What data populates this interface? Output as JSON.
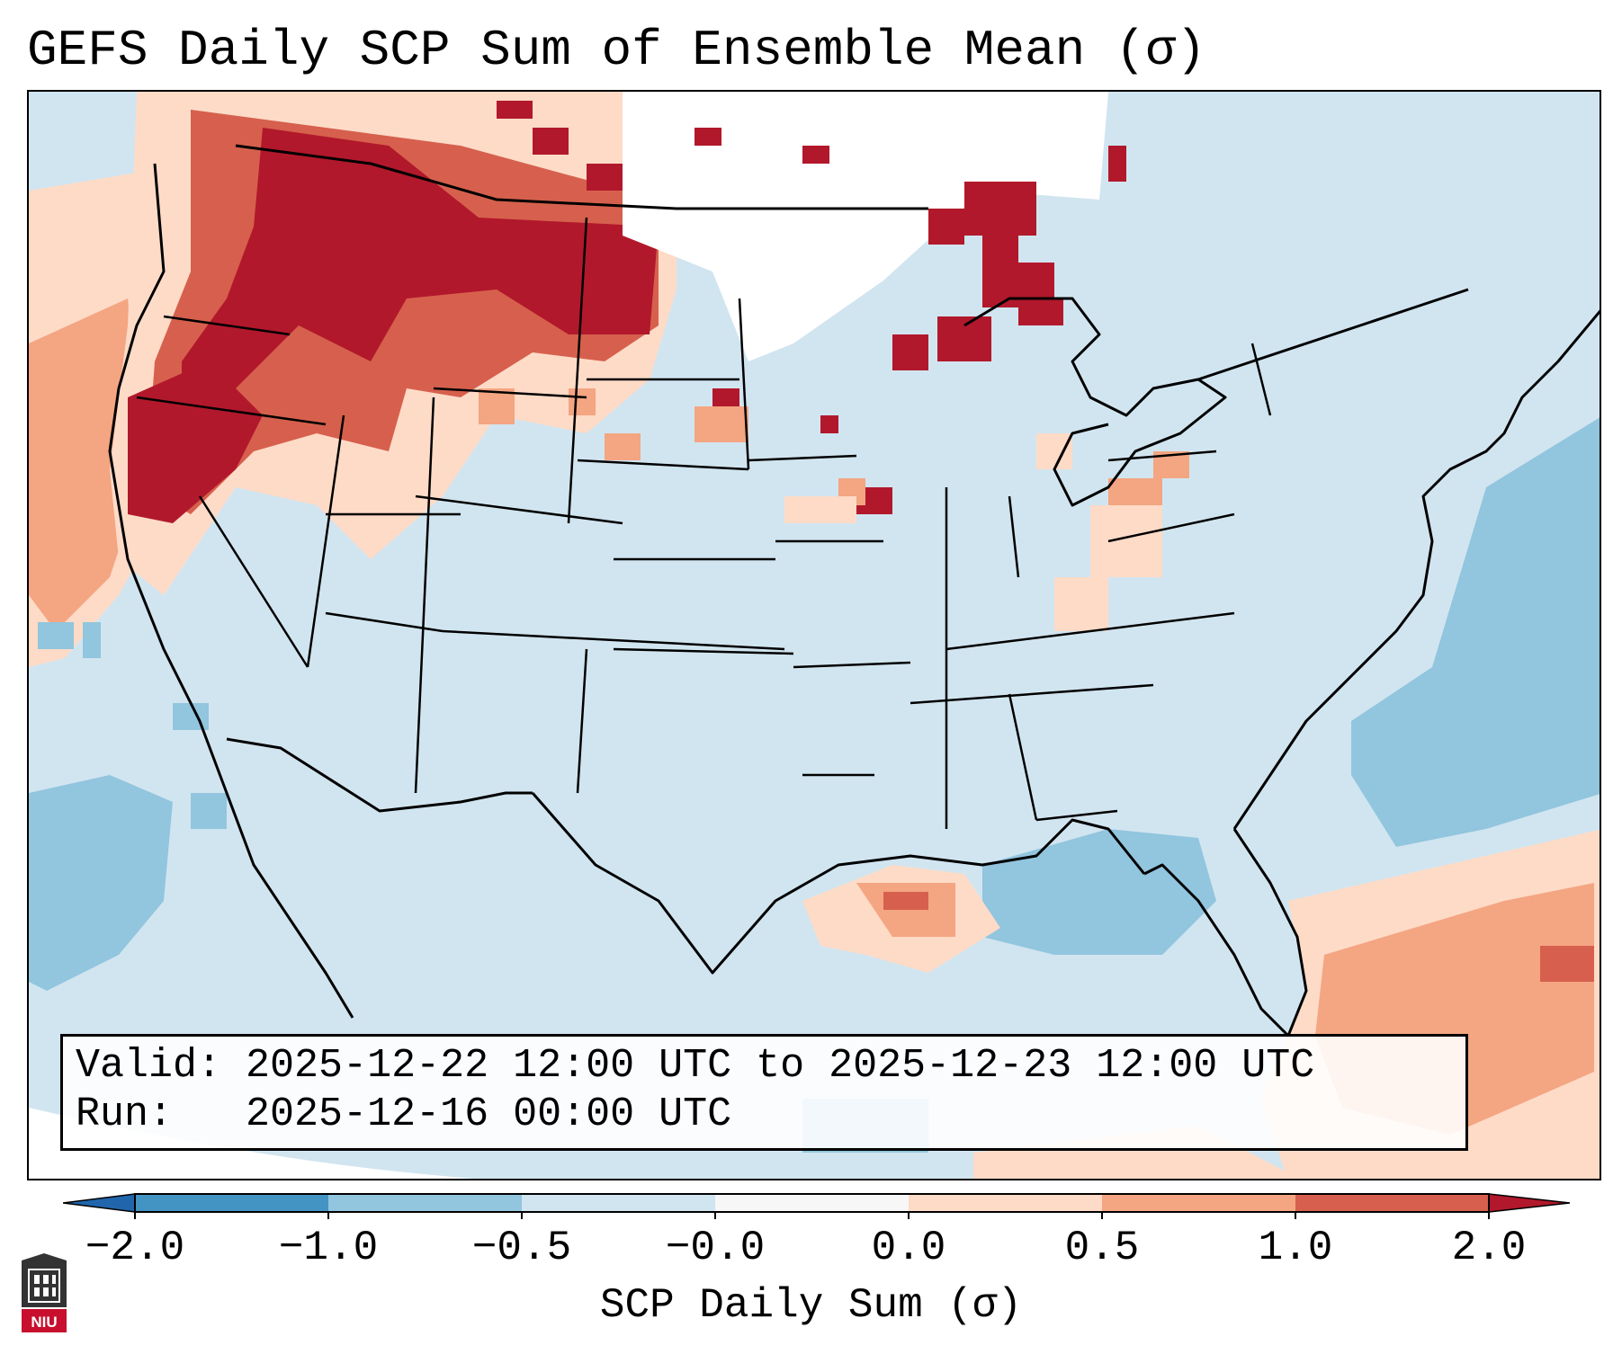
{
  "title": "GEFS Daily SCP Sum of Ensemble Mean (σ)",
  "info": {
    "valid_label": "Valid:",
    "valid_value": "2025-12-22 12:00 UTC to 2025-12-23 12:00 UTC",
    "run_label": "Run:",
    "run_value": "2025-12-16 00:00 UTC"
  },
  "colorbar": {
    "label": "SCP Daily Sum (σ)",
    "ticks": [
      "−2.0",
      "−1.0",
      "−0.5",
      "−0.0",
      "0.0",
      "0.5",
      "1.0",
      "2.0"
    ],
    "segments": [
      {
        "range": "< -2.0",
        "color": "#2166ac"
      },
      {
        "range": "-2.0 to -1.0",
        "color": "#4393c3"
      },
      {
        "range": "-1.0 to -0.5",
        "color": "#92c5de"
      },
      {
        "range": "-0.5 to -0.0",
        "color": "#d1e5f0"
      },
      {
        "range": "-0.0 to 0.0",
        "color": "#f7f7f7"
      },
      {
        "range": "0.0 to 0.5",
        "color": "#fddbc7"
      },
      {
        "range": "0.5 to 1.0",
        "color": "#f4a582"
      },
      {
        "range": "1.0 to 2.0",
        "color": "#d6604d"
      },
      {
        "range": "> 2.0",
        "color": "#b2182b"
      }
    ]
  },
  "map": {
    "projection": "Lambert Conformal, CONUS",
    "regions": [
      {
        "name": "Pacific Northwest / Northern Rockies",
        "level": ">2.0"
      },
      {
        "name": "Pacific coast offshore",
        "level": "0.0 to 1.0"
      },
      {
        "name": "Upper Midwest / Great Lakes",
        "level": ">2.0 spotty"
      },
      {
        "name": "Northern Plains",
        "level": "-0.0 to 0.0"
      },
      {
        "name": "Western Atlantic",
        "level": "-1.0 to -0.5"
      },
      {
        "name": "Gulf coast Texas/Louisiana",
        "level": "0.0 to 1.0"
      },
      {
        "name": "Caribbean / Bahamas",
        "level": "0.5 to 1.0"
      }
    ]
  },
  "logo": {
    "text": "NIU"
  }
}
